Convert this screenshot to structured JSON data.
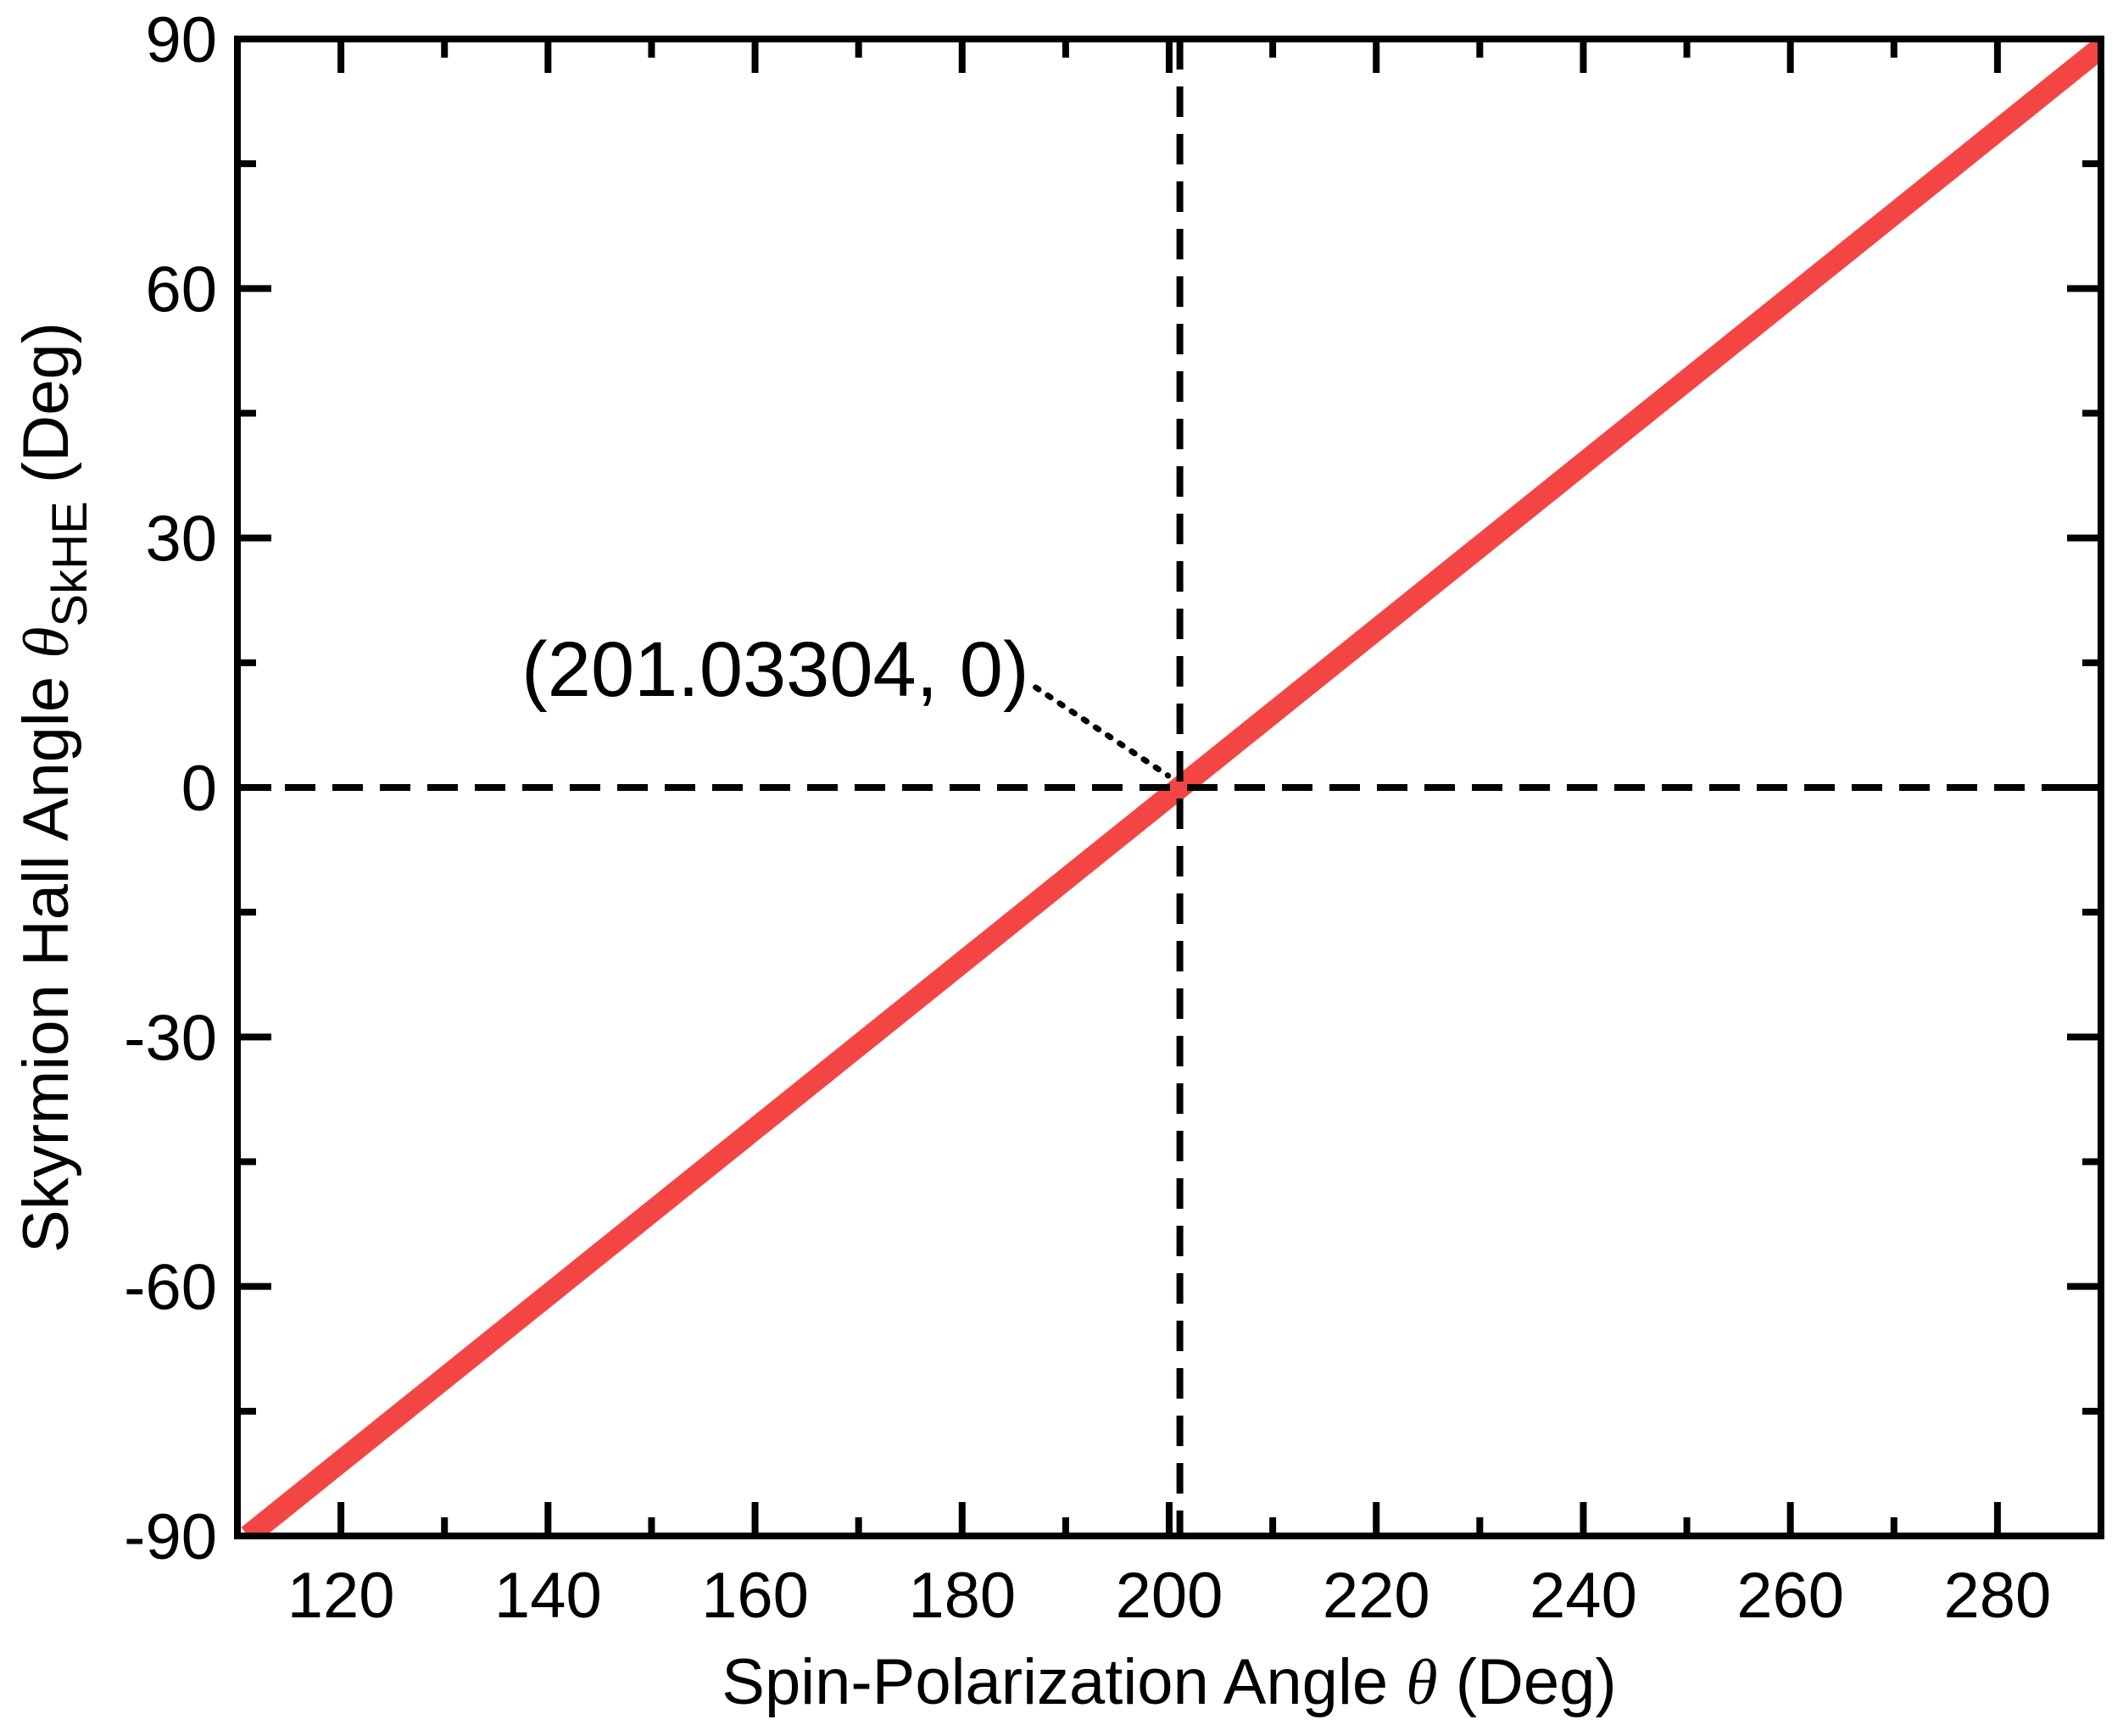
{
  "chart_data": {
    "type": "line",
    "xlabel": {
      "text": "Spin-Polarization Angle",
      "symbol": "θ",
      "unit": "(Deg)"
    },
    "ylabel": {
      "text": "Skyrmion Hall Angle",
      "symbol": "θ",
      "subscript": "SkHE",
      "unit": "(Deg)"
    },
    "xlim": [
      110,
      290
    ],
    "ylim": [
      -90,
      90
    ],
    "xticks": [
      120,
      140,
      160,
      180,
      200,
      220,
      240,
      260,
      280
    ],
    "yticks": [
      -90,
      -60,
      -30,
      0,
      30,
      60,
      90
    ],
    "series": [
      {
        "x": [
          111.03304,
          291.03304
        ],
        "y": [
          -90,
          90
        ],
        "color": "#f44545"
      }
    ],
    "reference_lines": [
      {
        "orientation": "vertical",
        "value": 201.03304,
        "style": "dashed",
        "color": "#000000"
      },
      {
        "orientation": "horizontal",
        "value": 0,
        "style": "dashed",
        "color": "#000000"
      }
    ],
    "annotation": {
      "text": "(201.03304, 0)",
      "point": [
        201.03304,
        0
      ]
    },
    "grid": false
  }
}
